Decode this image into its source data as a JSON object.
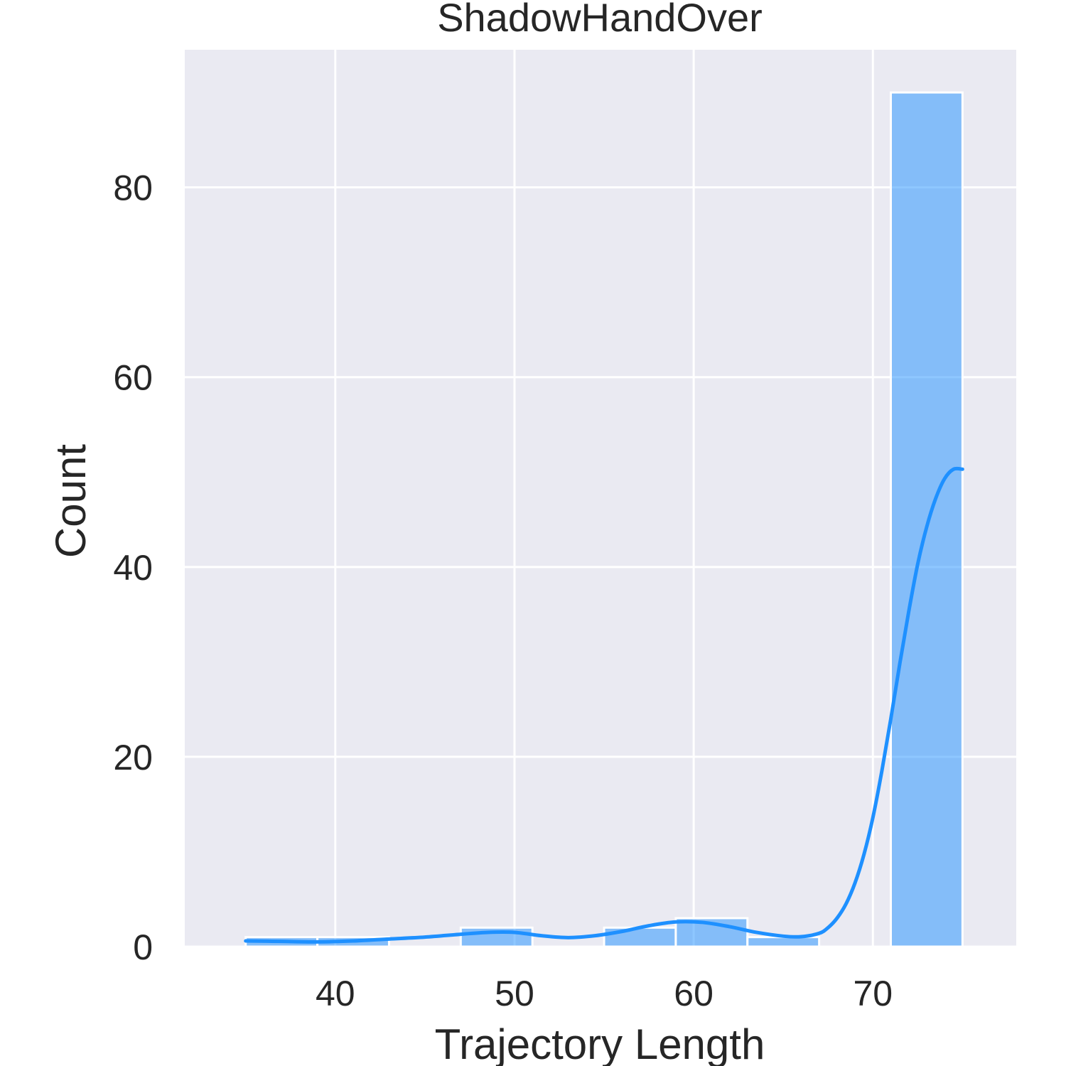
{
  "chart_data": {
    "type": "bar",
    "title": "ShadowHandOver",
    "xlabel": "Trajectory Length",
    "ylabel": "Count",
    "xlim": [
      31.6,
      78.0
    ],
    "ylim": [
      0,
      94.5
    ],
    "xticks": [
      40,
      50,
      60,
      70
    ],
    "yticks": [
      0,
      20,
      40,
      60,
      80
    ],
    "grid": true,
    "bar_color": "#1E90FF",
    "bar_alpha": 0.5,
    "kde_color": "#1E90FF",
    "background_color": "#EAEAF2",
    "bins": [
      {
        "x0": 35,
        "x1": 39,
        "count": 1
      },
      {
        "x0": 39,
        "x1": 43,
        "count": 1
      },
      {
        "x0": 43,
        "x1": 47,
        "count": 0
      },
      {
        "x0": 47,
        "x1": 51,
        "count": 2
      },
      {
        "x0": 51,
        "x1": 55,
        "count": 0
      },
      {
        "x0": 55,
        "x1": 59,
        "count": 2
      },
      {
        "x0": 59,
        "x1": 63,
        "count": 3
      },
      {
        "x0": 63,
        "x1": 67,
        "count": 1
      },
      {
        "x0": 67,
        "x1": 71,
        "count": 0
      },
      {
        "x0": 71,
        "x1": 75,
        "count": 90
      }
    ],
    "kde": {
      "x": [
        35,
        37,
        39,
        41,
        43,
        45,
        47,
        48.5,
        50,
        51.5,
        53,
        54.5,
        56,
        57.5,
        59,
        60.5,
        62,
        63.5,
        65,
        66,
        67,
        67.5,
        68,
        68.5,
        69,
        69.5,
        70,
        70.5,
        71,
        71.5,
        72,
        72.5,
        73,
        73.5,
        74,
        74.5,
        75
      ],
      "y": [
        0.6,
        0.55,
        0.5,
        0.6,
        0.8,
        1.0,
        1.3,
        1.5,
        1.5,
        1.15,
        0.95,
        1.15,
        1.6,
        2.2,
        2.6,
        2.55,
        2.1,
        1.5,
        1.1,
        1.05,
        1.4,
        2.0,
        3.0,
        4.5,
        6.7,
        9.7,
        13.6,
        18.5,
        24.0,
        29.8,
        35.3,
        40.3,
        44.2,
        47.2,
        49.3,
        50.3,
        50.3
      ]
    }
  }
}
